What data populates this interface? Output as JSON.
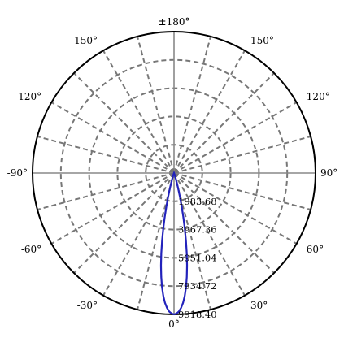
{
  "chart_data": {
    "type": "polar-line",
    "angle_labels": [
      {
        "angle": 180,
        "text": "±180°"
      },
      {
        "angle": 150,
        "text": "150°"
      },
      {
        "angle": 120,
        "text": "120°"
      },
      {
        "angle": 90,
        "text": "90°"
      },
      {
        "angle": 60,
        "text": "60°"
      },
      {
        "angle": 30,
        "text": "30°"
      },
      {
        "angle": 0,
        "text": "0°"
      },
      {
        "angle": -30,
        "text": "-30°"
      },
      {
        "angle": -60,
        "text": "-60°"
      },
      {
        "angle": -90,
        "text": "-90°"
      },
      {
        "angle": -120,
        "text": "-120°"
      },
      {
        "angle": -150,
        "text": "-150°"
      }
    ],
    "radial_ticks": [
      1983.68,
      3967.36,
      5951.04,
      7934.72,
      9918.4
    ],
    "radial_tick_labels": [
      "1983.68",
      "3967.36",
      "5951.04",
      "7934.72",
      "9918.40"
    ],
    "radial_max": 9918.4,
    "grid": true,
    "spoke_step_deg": 15,
    "series": [
      {
        "color": "#2222bb",
        "angles_deg": [
          0,
          1,
          2,
          3,
          4,
          5,
          6,
          7,
          8,
          9,
          10,
          11,
          12,
          13,
          14,
          15,
          16,
          17,
          18,
          19,
          20,
          22,
          25
        ],
        "values": [
          9918.4,
          9860,
          9720,
          9470,
          9120,
          8640,
          8050,
          7350,
          6560,
          5710,
          4820,
          3930,
          3090,
          2330,
          1680,
          1150,
          750,
          470,
          290,
          180,
          110,
          40,
          0
        ]
      }
    ]
  }
}
